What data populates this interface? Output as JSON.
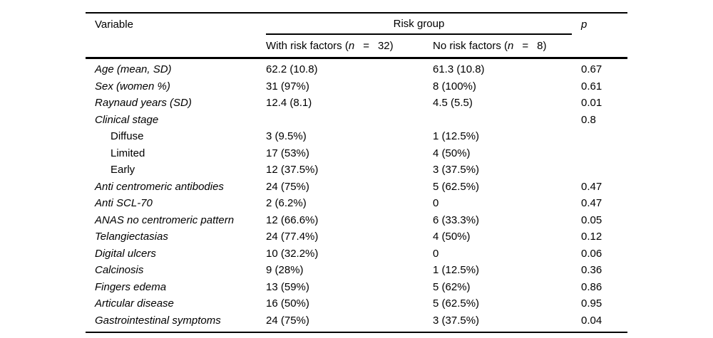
{
  "page": {
    "background_color": "#ffffff",
    "text_color": "#000000",
    "rule_color": "#000000"
  },
  "table": {
    "header": {
      "variable_label": "Variable",
      "risk_group_label": "Risk group",
      "p_label": "p"
    },
    "subheader": {
      "with_risk": {
        "pre": "With risk factors (",
        "n": "n",
        "eq": "=",
        "close": "32)"
      },
      "no_risk": {
        "pre": "No risk factors (",
        "n": "n",
        "eq": "=",
        "close": "8)"
      }
    },
    "rows": [
      {
        "label": "Age (mean, SD)",
        "style": "item",
        "with_risk": "62.2 (10.8)",
        "no_risk": "61.3 (10.8)",
        "p": "0.67"
      },
      {
        "label": "Sex (women %)",
        "style": "item",
        "with_risk": "31 (97%)",
        "no_risk": "8 (100%)",
        "p": "0.61"
      },
      {
        "label": "Raynaud years (SD)",
        "style": "item",
        "with_risk": "12.4 (8.1)",
        "no_risk": "4.5 (5.5)",
        "p": "0.01"
      },
      {
        "label": "Clinical stage",
        "style": "item",
        "with_risk": "",
        "no_risk": "",
        "p": "0.8"
      },
      {
        "label": "Diffuse",
        "style": "sub",
        "with_risk": "3 (9.5%)",
        "no_risk": "1 (12.5%)",
        "p": ""
      },
      {
        "label": "Limited",
        "style": "sub",
        "with_risk": "17 (53%)",
        "no_risk": "4 (50%)",
        "p": ""
      },
      {
        "label": "Early",
        "style": "sub",
        "with_risk": "12 (37.5%)",
        "no_risk": "3 (37.5%)",
        "p": ""
      },
      {
        "label": "Anti centromeric antibodies",
        "style": "item",
        "with_risk": "24 (75%)",
        "no_risk": "5 (62.5%)",
        "p": "0.47"
      },
      {
        "label": "Anti SCL-70",
        "style": "item",
        "with_risk": "2 (6.2%)",
        "no_risk": "0",
        "p": "0.47"
      },
      {
        "label": "ANAS no centromeric pattern",
        "style": "item",
        "with_risk": "12 (66.6%)",
        "no_risk": "6 (33.3%)",
        "p": "0.05"
      },
      {
        "label": "Telangiectasias",
        "style": "item",
        "with_risk": "24 (77.4%)",
        "no_risk": "4 (50%)",
        "p": "0.12"
      },
      {
        "label": "Digital ulcers",
        "style": "item",
        "with_risk": "10 (32.2%)",
        "no_risk": "0",
        "p": "0.06"
      },
      {
        "label": "Calcinosis",
        "style": "item",
        "with_risk": "9 (28%)",
        "no_risk": "1 (12.5%)",
        "p": "0.36"
      },
      {
        "label": "Fingers edema",
        "style": "item",
        "with_risk": "13 (59%)",
        "no_risk": "5 (62%)",
        "p": "0.86"
      },
      {
        "label": "Articular disease",
        "style": "item",
        "with_risk": "16 (50%)",
        "no_risk": "5 (62.5%)",
        "p": "0.95"
      },
      {
        "label": "Gastrointestinal symptoms",
        "style": "item",
        "with_risk": "24 (75%)",
        "no_risk": "3 (37.5%)",
        "p": "0.04"
      }
    ]
  }
}
